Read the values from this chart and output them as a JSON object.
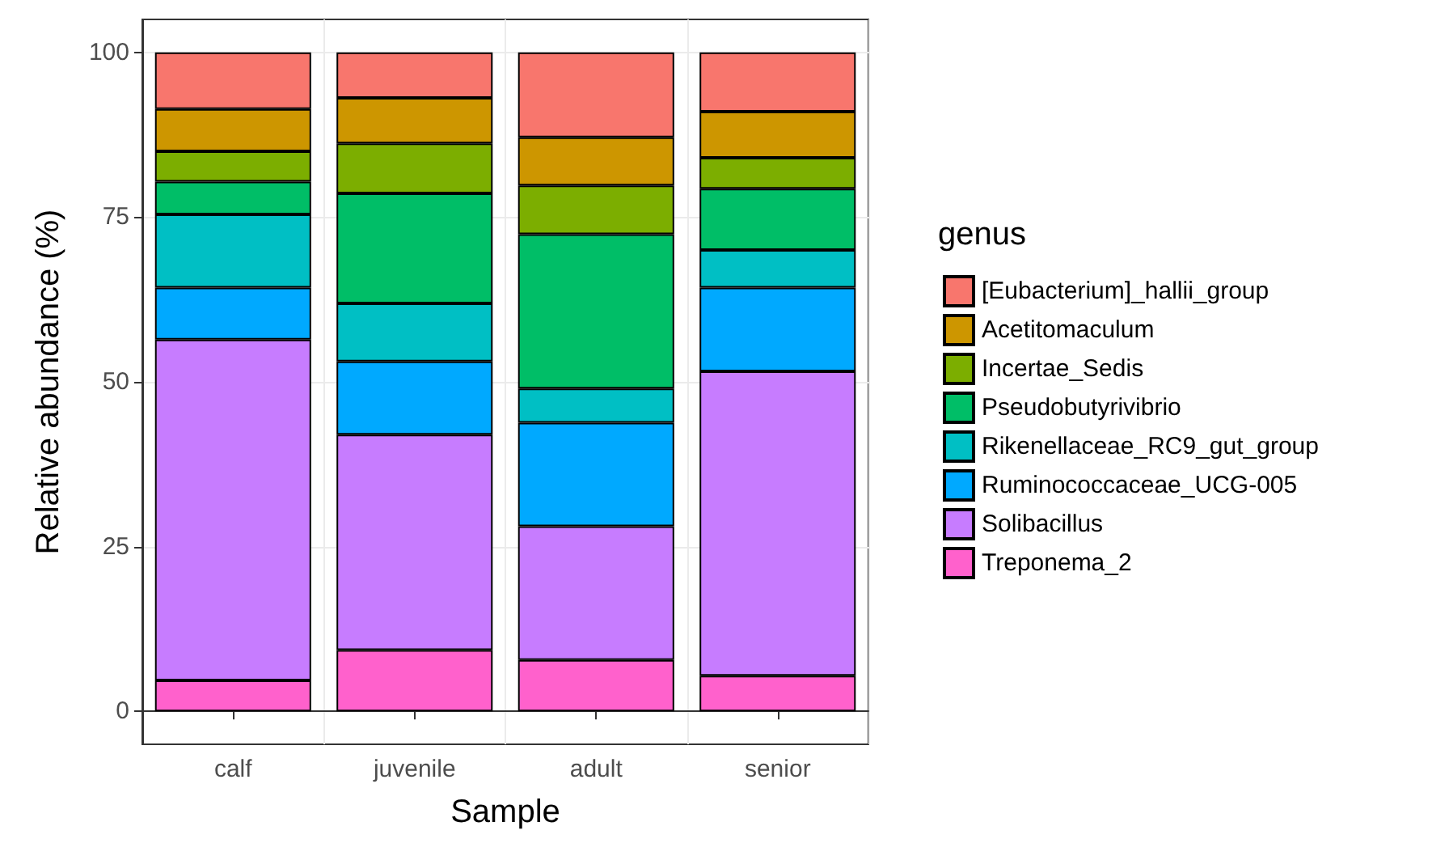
{
  "chart_data": {
    "type": "bar",
    "stacked": true,
    "xlabel": "Sample",
    "ylabel": "Relative abundance (%)",
    "legend_title": "genus",
    "legend": "right",
    "grid": true,
    "categories": [
      "calf",
      "juvenile",
      "adult",
      "senior"
    ],
    "ylim": [
      -5,
      105
    ],
    "yticks": [
      0,
      25,
      50,
      75,
      100
    ],
    "series": [
      {
        "name": "Treponema_2",
        "color": "#ff61cc",
        "values": [
          4.7,
          9.3,
          7.8,
          5.4
        ]
      },
      {
        "name": "Solibacillus",
        "color": "#c77cff",
        "values": [
          51.7,
          32.7,
          20.3,
          46.2
        ]
      },
      {
        "name": "Ruminococcaceae_UCG-005",
        "color": "#00a9ff",
        "values": [
          7.9,
          11.1,
          15.7,
          12.7
        ]
      },
      {
        "name": "Rikenellaceae_RC9_gut_group",
        "color": "#00bfc4",
        "values": [
          11.1,
          8.8,
          5.2,
          5.7
        ]
      },
      {
        "name": "Pseudobutyrivibrio",
        "color": "#00be67",
        "values": [
          5.0,
          16.7,
          23.4,
          9.3
        ]
      },
      {
        "name": "Incertae_Sedis",
        "color": "#7cae00",
        "values": [
          4.6,
          7.6,
          7.4,
          4.7
        ]
      },
      {
        "name": "Acetitomaculum",
        "color": "#cd9600",
        "values": [
          6.4,
          6.9,
          7.3,
          7.0
        ]
      },
      {
        "name": "[Eubacterium]_hallii_group",
        "color": "#f8766d",
        "values": [
          8.6,
          6.9,
          12.9,
          9.0
        ]
      }
    ]
  }
}
